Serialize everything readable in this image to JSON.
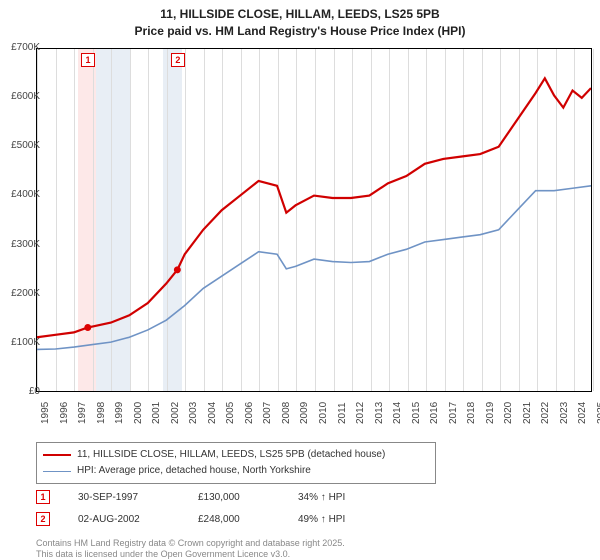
{
  "title": {
    "line1": "11, HILLSIDE CLOSE, HILLAM, LEEDS, LS25 5PB",
    "line2": "Price paid vs. HM Land Registry's House Price Index (HPI)"
  },
  "chart": {
    "type": "line",
    "background_color": "#ffffff",
    "grid_color": "#dddddd",
    "x_years": [
      1995,
      1996,
      1997,
      1998,
      1999,
      2000,
      2001,
      2002,
      2003,
      2004,
      2005,
      2006,
      2007,
      2008,
      2009,
      2010,
      2011,
      2012,
      2013,
      2014,
      2015,
      2016,
      2017,
      2018,
      2019,
      2020,
      2021,
      2022,
      2023,
      2024,
      2025
    ],
    "ylim": [
      0,
      700000
    ],
    "ytick_step": 100000,
    "ytick_labels": [
      "£0",
      "£100K",
      "£200K",
      "£300K",
      "£400K",
      "£500K",
      "£600K",
      "£700K"
    ],
    "shaded_bands": [
      {
        "year_start": 1997.2,
        "year_end": 1998.2,
        "color": "#fde8e8"
      },
      {
        "year_start": 1998.2,
        "year_end": 2000.0,
        "color": "#e8eef5"
      },
      {
        "year_start": 2001.8,
        "year_end": 2002.8,
        "color": "#e8eef5"
      }
    ],
    "markers": [
      {
        "label": "1",
        "year": 1997.75,
        "value": 130000
      },
      {
        "label": "2",
        "year": 2002.6,
        "value": 248000
      }
    ],
    "series": [
      {
        "name": "price_paid",
        "color": "#d00000",
        "width": 2.2,
        "legend": "11, HILLSIDE CLOSE, HILLAM, LEEDS, LS25 5PB (detached house)",
        "points": [
          [
            1995,
            110000
          ],
          [
            1996,
            115000
          ],
          [
            1997,
            120000
          ],
          [
            1997.75,
            130000
          ],
          [
            1998,
            132000
          ],
          [
            1999,
            140000
          ],
          [
            2000,
            155000
          ],
          [
            2001,
            180000
          ],
          [
            2002,
            220000
          ],
          [
            2002.6,
            248000
          ],
          [
            2003,
            280000
          ],
          [
            2004,
            330000
          ],
          [
            2005,
            370000
          ],
          [
            2006,
            400000
          ],
          [
            2007,
            430000
          ],
          [
            2008,
            420000
          ],
          [
            2008.5,
            365000
          ],
          [
            2009,
            380000
          ],
          [
            2010,
            400000
          ],
          [
            2011,
            395000
          ],
          [
            2012,
            395000
          ],
          [
            2013,
            400000
          ],
          [
            2014,
            425000
          ],
          [
            2015,
            440000
          ],
          [
            2016,
            465000
          ],
          [
            2017,
            475000
          ],
          [
            2018,
            480000
          ],
          [
            2019,
            485000
          ],
          [
            2020,
            500000
          ],
          [
            2021,
            555000
          ],
          [
            2022,
            610000
          ],
          [
            2022.5,
            640000
          ],
          [
            2023,
            605000
          ],
          [
            2023.5,
            580000
          ],
          [
            2024,
            615000
          ],
          [
            2024.5,
            600000
          ],
          [
            2025,
            620000
          ]
        ]
      },
      {
        "name": "hpi",
        "color": "#6f93c5",
        "width": 1.6,
        "legend": "HPI: Average price, detached house, North Yorkshire",
        "points": [
          [
            1995,
            85000
          ],
          [
            1996,
            86000
          ],
          [
            1997,
            90000
          ],
          [
            1998,
            95000
          ],
          [
            1999,
            100000
          ],
          [
            2000,
            110000
          ],
          [
            2001,
            125000
          ],
          [
            2002,
            145000
          ],
          [
            2003,
            175000
          ],
          [
            2004,
            210000
          ],
          [
            2005,
            235000
          ],
          [
            2006,
            260000
          ],
          [
            2007,
            285000
          ],
          [
            2008,
            280000
          ],
          [
            2008.5,
            250000
          ],
          [
            2009,
            255000
          ],
          [
            2010,
            270000
          ],
          [
            2011,
            265000
          ],
          [
            2012,
            263000
          ],
          [
            2013,
            265000
          ],
          [
            2014,
            280000
          ],
          [
            2015,
            290000
          ],
          [
            2016,
            305000
          ],
          [
            2017,
            310000
          ],
          [
            2018,
            315000
          ],
          [
            2019,
            320000
          ],
          [
            2020,
            330000
          ],
          [
            2021,
            370000
          ],
          [
            2022,
            410000
          ],
          [
            2023,
            410000
          ],
          [
            2024,
            415000
          ],
          [
            2025,
            420000
          ]
        ]
      }
    ]
  },
  "annotations": [
    {
      "idx": "1",
      "date": "30-SEP-1997",
      "price": "£130,000",
      "pct": "34% ↑ HPI"
    },
    {
      "idx": "2",
      "date": "02-AUG-2002",
      "price": "£248,000",
      "pct": "49% ↑ HPI"
    }
  ],
  "footer": {
    "line1": "Contains HM Land Registry data © Crown copyright and database right 2025.",
    "line2": "This data is licensed under the Open Government Licence v3.0."
  }
}
